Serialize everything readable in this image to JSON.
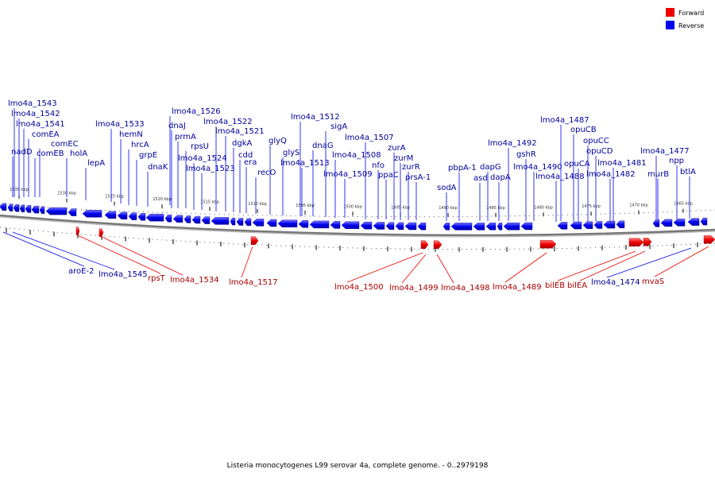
{
  "caption": "Listeria monocytogenes L99 serovar 4a, complete genome. - 0..2979198",
  "legend": [
    {
      "label": "Forward",
      "color": "#ee0000"
    },
    {
      "label": "Reverse",
      "color": "#0000ee"
    }
  ],
  "colors": {
    "forward": "#ee0000",
    "reverse": "#0000ee",
    "forward_text": "#aa0000",
    "reverse_text": "#000099",
    "backbone": "#888888"
  },
  "ticks": [
    "1535 kbp",
    "1530 kbp",
    "1525 kbp",
    "1520 kbp",
    "1515 kbp",
    "1510 kbp",
    "1505 kbp",
    "1500 kbp",
    "1495 kbp",
    "1490 kbp",
    "1485 kbp",
    "1480 kbp",
    "1475 kbp",
    "1470 kbp",
    "1465 kbp"
  ],
  "reverse_labels": [
    "lmo4a_1543",
    "lmo4a_1542",
    "lmo4a_1541",
    "comEA",
    "comEC",
    "nadD",
    "comEB",
    "holA",
    "lepA",
    "lmo4a_1533",
    "hemN",
    "hrcA",
    "grpE",
    "dnaK",
    "lmo4a_1526",
    "dnaJ",
    "prmA",
    "rpsU",
    "lmo4a_1524",
    "lmo4a_1523",
    "lmo4a_1522",
    "lmo4a_1521",
    "dgkA",
    "cdd",
    "era",
    "recO",
    "glyQ",
    "glyS",
    "lmo4a_1513",
    "lmo4a_1512",
    "dnaG",
    "sigA",
    "lmo4a_1508",
    "lmo4a_1509",
    "lmo4a_1507",
    "nfo",
    "ppaC",
    "zurA",
    "zurM",
    "zurR",
    "prsA-1",
    "sodA",
    "pbpA-1",
    "asd",
    "dapG",
    "dapA",
    "lmo4a_1492",
    "gshR",
    "lmo4a_1490",
    "lmo4a_1488",
    "lmo4a_1487",
    "opuCB",
    "opuCA",
    "opuCC",
    "opuCD",
    "lmo4a_1482",
    "lmo4a_1481",
    "lmo4a_1477",
    "murB",
    "npp",
    "btlA",
    "aroE-2",
    "lmo4a_1545",
    "lmo4a_1474"
  ],
  "forward_labels": [
    "rpsT",
    "lmo4a_1534",
    "lmo4a_1517",
    "lmo4a_1500",
    "lmo4a_1499",
    "lmo4a_1498",
    "lmo4a_1489",
    "bilEB",
    "bilEA",
    "mvaS"
  ]
}
